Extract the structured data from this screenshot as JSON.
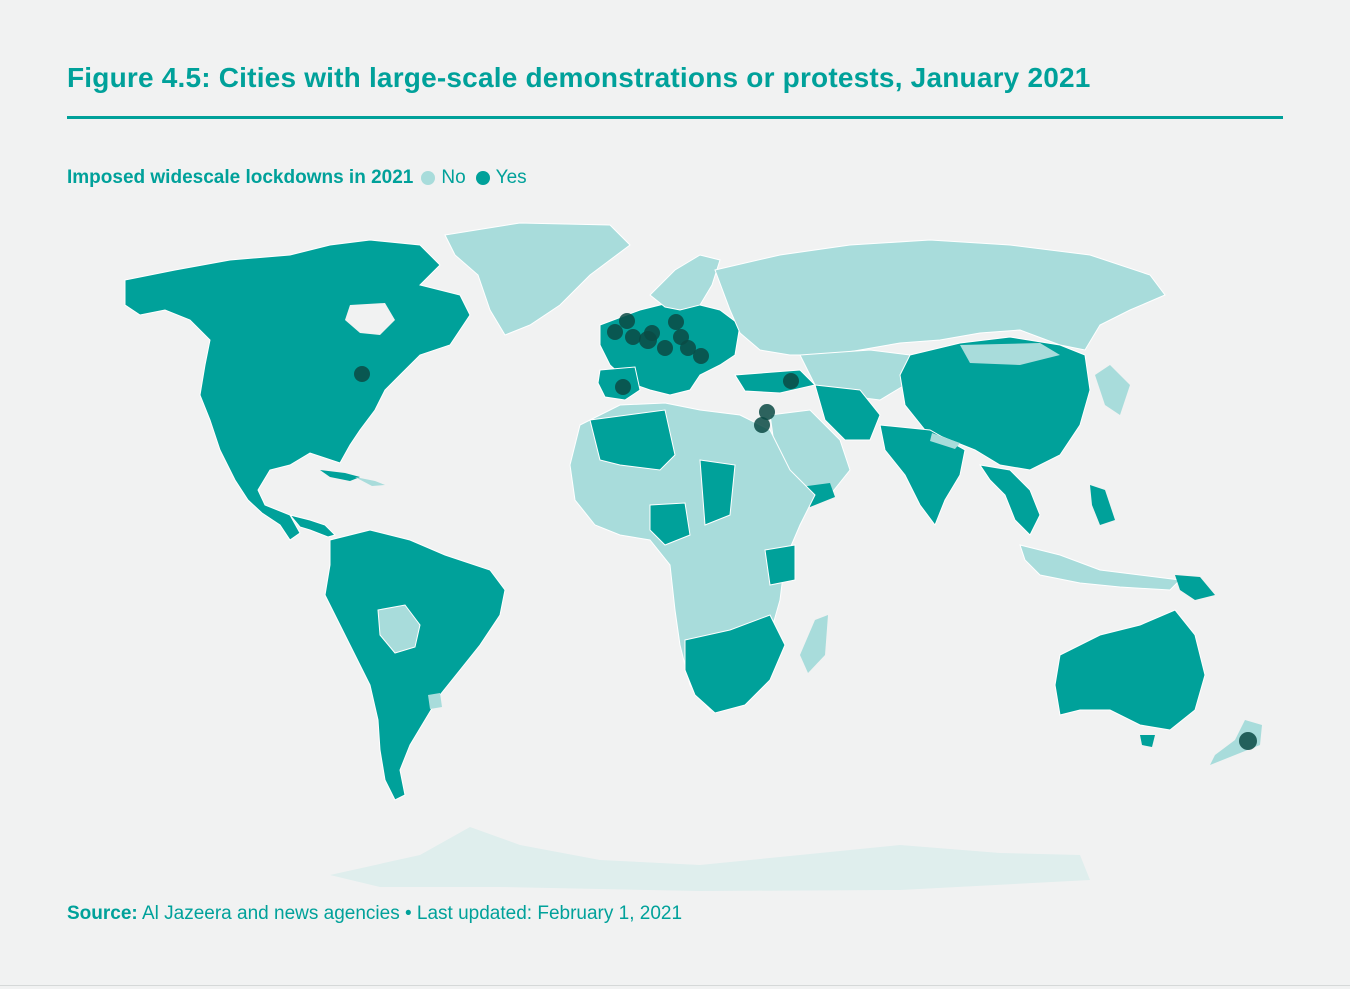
{
  "figure": {
    "title": "Figure 4.5: Cities with large-scale demonstrations or protests, January 2021"
  },
  "legend": {
    "title": "Imposed widescale lockdowns in 2021",
    "items": [
      {
        "label": "No",
        "color": "#a8dcdb"
      },
      {
        "label": "Yes",
        "color": "#00a19a"
      }
    ]
  },
  "colors": {
    "accent": "#00a19a",
    "no_lockdown": "#a8dcdb",
    "yes_lockdown": "#00a19a",
    "protest_marker": "#0b4a44",
    "background": "#f1f2f2"
  },
  "source": {
    "label": "Source:",
    "text": "Al Jazeera and news agencies • Last updated: February 1, 2021"
  }
}
